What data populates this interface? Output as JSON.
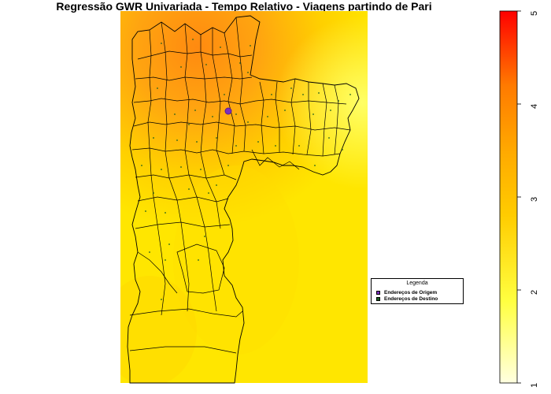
{
  "title": "Regressão GWR Univariada - Tempo Relativo - Viagens partindo de Pari",
  "legend": {
    "title": "Legenda",
    "items": [
      {
        "label": "Endereços de Origem",
        "color": "#7b2fbe"
      },
      {
        "label": "Endereços de Destino",
        "color": "#1b5e20"
      }
    ]
  },
  "color_scale": {
    "min": 1,
    "max": 5,
    "ticks": [
      "1",
      "2",
      "3",
      "4",
      "5"
    ],
    "colors": [
      "#ffffe0",
      "#ffff33",
      "#ffcc00",
      "#ff9900",
      "#ff5500",
      "#ff0000"
    ]
  },
  "map_colors": {
    "background_base": "#ffee00",
    "hotspot_orange": "#ff9a10",
    "boundary": "#000000",
    "origin_marker": "#7b2fbe"
  }
}
